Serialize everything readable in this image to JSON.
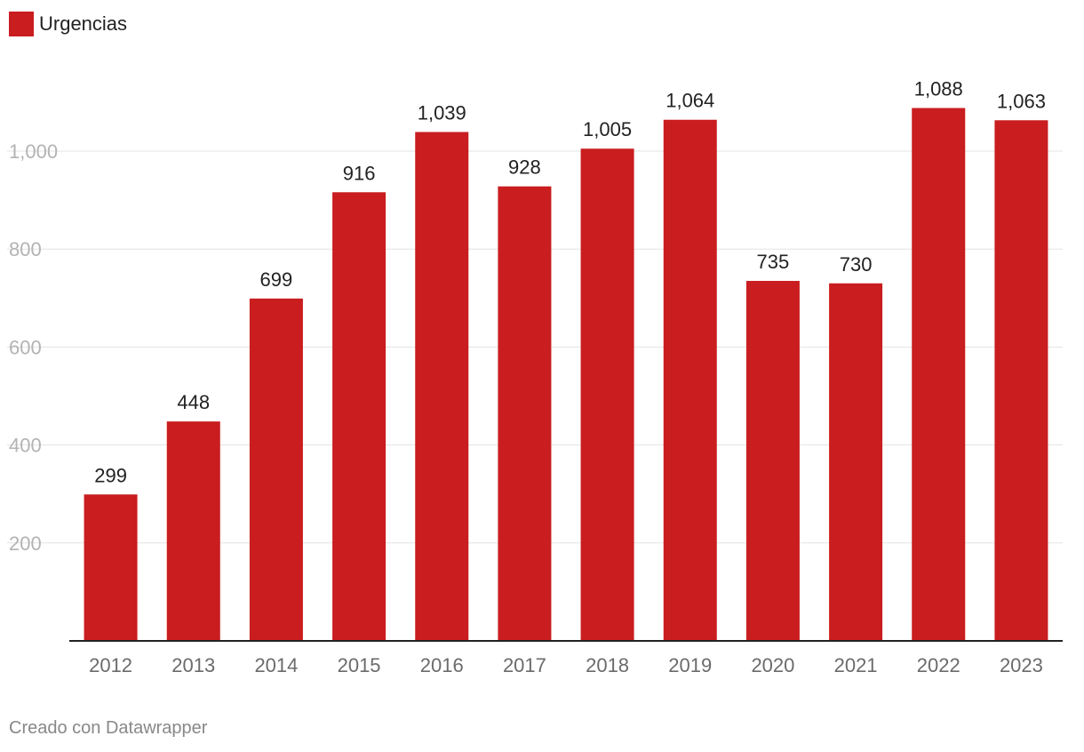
{
  "legend": {
    "label": "Urgencias",
    "color": "#c91d1f"
  },
  "footer": {
    "credit": "Creado con Datawrapper"
  },
  "chart_data": {
    "type": "bar",
    "categories": [
      "2012",
      "2013",
      "2014",
      "2015",
      "2016",
      "2017",
      "2018",
      "2019",
      "2020",
      "2021",
      "2022",
      "2023"
    ],
    "series": [
      {
        "name": "Urgencias",
        "values": [
          299,
          448,
          699,
          916,
          1039,
          928,
          1005,
          1064,
          735,
          730,
          1088,
          1063
        ]
      }
    ],
    "value_labels": [
      "299",
      "448",
      "699",
      "916",
      "1,039",
      "928",
      "1,005",
      "1,064",
      "735",
      "730",
      "1,088",
      "1,063"
    ],
    "yticks": [
      200,
      400,
      600,
      800,
      1000
    ],
    "ytick_labels": [
      "200",
      "400",
      "600",
      "800",
      "1,000"
    ],
    "ylim": [
      0,
      1100
    ],
    "grid": true,
    "legend_position": "top-left",
    "bar_color": "#c91d1f",
    "title": "",
    "xlabel": "",
    "ylabel": ""
  }
}
